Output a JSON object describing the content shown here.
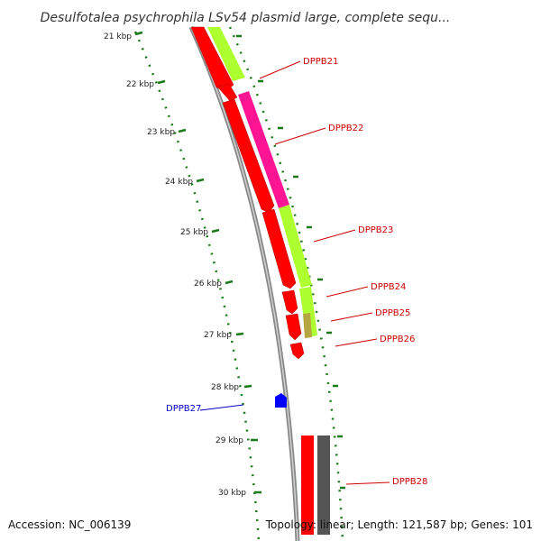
{
  "title": "Desulfotalea psychrophila LSv54 plasmid large, complete sequ...",
  "footer": {
    "accession": "Accession: NC_006139",
    "summary": "Topology: linear; Length: 121,587 bp; Genes: 101"
  },
  "kbp_labels": [
    "21 kbp",
    "22 kbp",
    "23 kbp",
    "24 kbp",
    "25 kbp",
    "26 kbp",
    "27 kbp",
    "28 kbp",
    "29 kbp",
    "30 kbp"
  ],
  "genes": [
    {
      "label": "DPPB21",
      "color": "#cc0000"
    },
    {
      "label": "DPPB22",
      "color": "#cc0000"
    },
    {
      "label": "DPPB23",
      "color": "#cc0000"
    },
    {
      "label": "DPPB24",
      "color": "#cc0000"
    },
    {
      "label": "DPPB25",
      "color": "#cc0000"
    },
    {
      "label": "DPPB26",
      "color": "#cc0000"
    },
    {
      "label": "DPPB27",
      "color": "#0000cc"
    },
    {
      "label": "DPPB28",
      "color": "#cc0000"
    }
  ],
  "colors": {
    "backbone": "#808080",
    "cds_forward": "#ff0000",
    "rna_reverse": "#0000ff",
    "cog_green": "#adff2f",
    "cog_pink": "#ff1493",
    "cog_tan": "#b5a642",
    "cog_gray": "#555555",
    "gc_dots": "#1a7a1a"
  }
}
